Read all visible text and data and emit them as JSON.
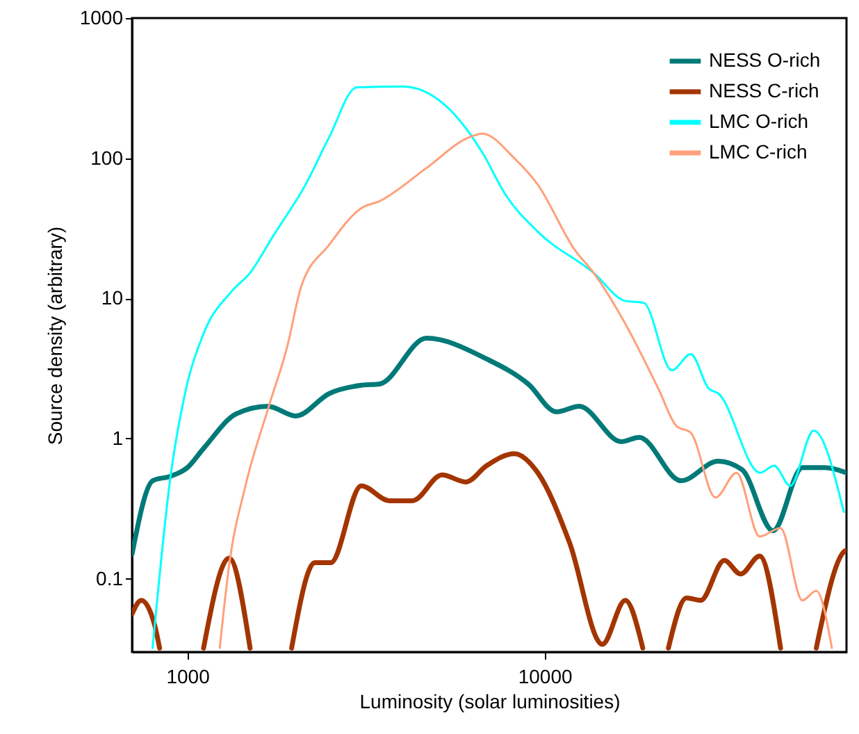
{
  "chart_data": {
    "type": "line",
    "xlabel": "Luminosity (solar luminosities)",
    "ylabel": "Source density (arbitrary)",
    "log": "xy",
    "xlim": [
      700,
      70000
    ],
    "ylim": [
      0.03,
      1000
    ],
    "xticks": [
      1000,
      10000
    ],
    "yticks": [
      0.1,
      1,
      10,
      100,
      1000
    ],
    "grid": false,
    "legend": "top right",
    "line_style": "solid",
    "marker": "none",
    "series": [
      {
        "name": "NESS O-rich",
        "color": "#007a78",
        "x": [
          700,
          800,
          900,
          1000,
          1110,
          1370,
          1680,
          2010,
          2500,
          3070,
          3450,
          4670,
          6880,
          9000,
          10800,
          12500,
          16400,
          18400,
          24100,
          30600,
          35700,
          43600,
          52700,
          61000,
          70000
        ],
        "values": [
          0.15,
          0.5,
          0.54,
          0.62,
          0.85,
          1.5,
          1.7,
          1.45,
          2.1,
          2.4,
          2.45,
          5.2,
          3.7,
          2.45,
          1.55,
          1.7,
          0.95,
          1.02,
          0.5,
          0.69,
          0.6,
          0.22,
          0.62,
          0.62,
          0.57
        ]
      },
      {
        "name": "NESS C-rich",
        "color": "#a33500",
        "x": [
          700,
          743,
          811,
          836,
          950,
          1110,
          1309,
          1498,
          1700,
          1958,
          2275,
          2520,
          3067,
          3677,
          4265,
          5165,
          6024,
          6877,
          8227,
          9570,
          11750,
          14500,
          16820,
          18830,
          20500,
          22210,
          24960,
          27330,
          31840,
          35370,
          39990,
          45760,
          51000,
          57610,
          69100,
          70000
        ],
        "values": [
          0.056,
          0.07,
          0.046,
          0.032,
          null,
          0.032,
          0.14,
          0.032,
          null,
          0.032,
          0.13,
          0.13,
          0.46,
          0.36,
          0.36,
          0.55,
          0.49,
          0.64,
          0.78,
          0.57,
          0.18,
          0.034,
          0.07,
          0.032,
          null,
          0.032,
          0.073,
          0.07,
          0.135,
          0.108,
          0.145,
          0.032,
          null,
          0.032,
          0.157,
          0.16
        ]
      },
      {
        "name": "LMC O-rich",
        "color": "#00ffff",
        "x": [
          799,
          900,
          985,
          1110,
          1329,
          1498,
          1740,
          2143,
          2490,
          2979,
          4016,
          5256,
          6690,
          7770,
          9560,
          13720,
          16820,
          18940,
          22710,
          25660,
          28810,
          30630,
          40120,
          43890,
          48740,
          56650,
          68800
        ],
        "values": [
          0.032,
          0.57,
          2.1,
          5.6,
          11.2,
          15.2,
          28,
          65,
          140,
          320,
          325,
          240,
          110,
          55,
          30,
          15.2,
          9.6,
          9.3,
          3.07,
          4.0,
          2.27,
          2.1,
          0.57,
          0.64,
          0.46,
          1.14,
          0.3
        ]
      },
      {
        "name": "LMC C-rich",
        "color": "#ffa07a",
        "x": [
          1232,
          1309,
          1454,
          1687,
          1902,
          2082,
          2490,
          3067,
          3460,
          4665,
          6113,
          6690,
          8227,
          9560,
          12130,
          13720,
          16820,
          20830,
          23390,
          25660,
          30100,
          34460,
          39990,
          45760,
          52670,
          57610,
          63700
        ],
        "values": [
          0.032,
          0.125,
          0.46,
          1.67,
          4.5,
          12.1,
          24,
          44,
          49.6,
          85,
          140,
          150,
          100,
          65,
          22.3,
          15.2,
          6.6,
          2.26,
          1.23,
          1.1,
          0.38,
          0.57,
          0.2,
          0.23,
          0.07,
          0.082,
          0.032
        ]
      }
    ]
  }
}
